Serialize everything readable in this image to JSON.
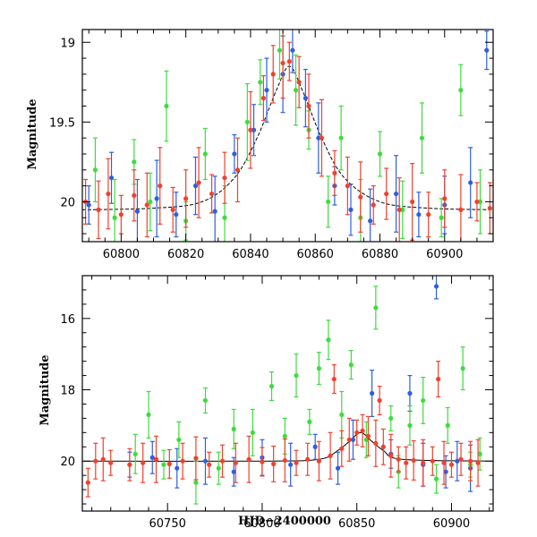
{
  "chart_data": [
    {
      "type": "scatter",
      "xlabel": "",
      "ylabel": "Magnitude",
      "xlim": [
        60788,
        60915
      ],
      "ylim": [
        20.25,
        18.92
      ],
      "y_inverted": true,
      "x_ticks": [
        60800,
        60820,
        60840,
        60860,
        60880,
        60900
      ],
      "y_ticks": [
        19,
        19.5,
        20
      ],
      "x_tick_labels": [
        "60800",
        "60820",
        "60840",
        "60860",
        "60880",
        "60900"
      ],
      "y_tick_labels": [
        "19",
        "19.5",
        "20"
      ],
      "model_curve": {
        "color": "#000000",
        "baseline": 20.05,
        "peak_time": 60852,
        "peak_mag": 19.15,
        "tE": 9,
        "points": [
          [
            60788,
            20.05
          ],
          [
            60810,
            20.04
          ],
          [
            60825,
            20.0
          ],
          [
            60835,
            19.85
          ],
          [
            60842,
            19.6
          ],
          [
            60848,
            19.3
          ],
          [
            60852,
            19.15
          ],
          [
            60856,
            19.3
          ],
          [
            60862,
            19.6
          ],
          [
            60869,
            19.85
          ],
          [
            60880,
            20.0
          ],
          [
            60895,
            20.04
          ],
          [
            60915,
            20.05
          ]
        ]
      },
      "series": [
        {
          "color": "#2d5fe0",
          "points": [
            [
              60790,
              20.02
            ],
            [
              60797,
              19.85
            ],
            [
              60805,
              20.06
            ],
            [
              60811,
              19.98
            ],
            [
              60817,
              20.08
            ],
            [
              60823,
              19.9
            ],
            [
              60829,
              20.06
            ],
            [
              60835,
              19.7
            ],
            [
              60841,
              19.55
            ],
            [
              60845,
              19.3
            ],
            [
              60850,
              19.2
            ],
            [
              60853,
              19.05
            ],
            [
              60857,
              19.35
            ],
            [
              60861,
              19.6
            ],
            [
              60866,
              19.9
            ],
            [
              60871,
              20.05
            ],
            [
              60877,
              20.12
            ],
            [
              60885,
              19.95
            ],
            [
              60892,
              20.08
            ],
            [
              60900,
              20.02
            ],
            [
              60908,
              19.88
            ],
            [
              60913,
              19.05
            ]
          ]
        },
        {
          "color": "#3ddc3d",
          "points": [
            [
              60792,
              19.8
            ],
            [
              60798,
              20.1
            ],
            [
              60804,
              19.75
            ],
            [
              60809,
              20.0
            ],
            [
              60814,
              19.4
            ],
            [
              60820,
              20.12
            ],
            [
              60826,
              19.7
            ],
            [
              60832,
              20.1
            ],
            [
              60839,
              19.5
            ],
            [
              60843,
              19.25
            ],
            [
              60849,
              19.05
            ],
            [
              60854,
              19.3
            ],
            [
              60858,
              19.55
            ],
            [
              60864,
              20.0
            ],
            [
              60868,
              19.6
            ],
            [
              60874,
              20.1
            ],
            [
              60880,
              19.7
            ],
            [
              60887,
              20.05
            ],
            [
              60893,
              19.6
            ],
            [
              60899,
              20.1
            ],
            [
              60905,
              19.3
            ],
            [
              60911,
              20.0
            ]
          ]
        },
        {
          "color": "#f0412d",
          "points": [
            [
              60789,
              20.0
            ],
            [
              60793,
              20.05
            ],
            [
              60796,
              19.95
            ],
            [
              60800,
              20.08
            ],
            [
              60804,
              19.96
            ],
            [
              60808,
              20.02
            ],
            [
              60812,
              19.9
            ],
            [
              60816,
              20.05
            ],
            [
              60820,
              19.98
            ],
            [
              60824,
              19.88
            ],
            [
              60828,
              19.95
            ],
            [
              60832,
              19.85
            ],
            [
              60836,
              19.8
            ],
            [
              60840,
              19.55
            ],
            [
              60844,
              19.35
            ],
            [
              60847,
              19.2
            ],
            [
              60850,
              19.13
            ],
            [
              60852,
              19.12
            ],
            [
              60855,
              19.25
            ],
            [
              60858,
              19.4
            ],
            [
              60862,
              19.6
            ],
            [
              60866,
              19.82
            ],
            [
              60870,
              19.9
            ],
            [
              60874,
              19.97
            ],
            [
              60878,
              20.02
            ],
            [
              60882,
              19.95
            ],
            [
              60886,
              20.05
            ],
            [
              60890,
              20.0
            ],
            [
              60895,
              20.08
            ],
            [
              60900,
              19.98
            ],
            [
              60905,
              20.05
            ],
            [
              60910,
              20.0
            ],
            [
              60914,
              20.04
            ]
          ]
        }
      ]
    },
    {
      "type": "scatter",
      "xlabel": "HJD−2400000",
      "ylabel": "Magnitude",
      "xlim": [
        60705,
        60922
      ],
      "ylim": [
        21.4,
        14.8
      ],
      "y_inverted": true,
      "x_ticks": [
        60750,
        60800,
        60850,
        60900
      ],
      "y_ticks": [
        16,
        18,
        20
      ],
      "x_tick_labels": [
        "60750",
        "60800",
        "60850",
        "60900"
      ],
      "y_tick_labels": [
        "16",
        "18",
        "20"
      ],
      "model_curve": {
        "color": "#000000",
        "points": [
          [
            60705,
            20.0
          ],
          [
            60800,
            20.0
          ],
          [
            60830,
            19.95
          ],
          [
            60840,
            19.7
          ],
          [
            60846,
            19.45
          ],
          [
            60852,
            19.2
          ],
          [
            60858,
            19.45
          ],
          [
            60864,
            19.7
          ],
          [
            60874,
            19.95
          ],
          [
            60922,
            20.0
          ]
        ]
      },
      "series": [
        {
          "color": "#2d5fe0",
          "points": [
            [
              60730,
              20.1
            ],
            [
              60742,
              19.9
            ],
            [
              60755,
              20.2
            ],
            [
              60770,
              20.0
            ],
            [
              60785,
              20.3
            ],
            [
              60800,
              19.9
            ],
            [
              60815,
              20.1
            ],
            [
              60828,
              19.6
            ],
            [
              60840,
              20.2
            ],
            [
              60848,
              19.4
            ],
            [
              60858,
              18.1
            ],
            [
              60868,
              19.8
            ],
            [
              60878,
              18.1
            ],
            [
              60885,
              20.1
            ],
            [
              60892,
              15.1
            ],
            [
              60897,
              20.3
            ],
            [
              60903,
              20.0
            ],
            [
              60910,
              20.2
            ]
          ]
        },
        {
          "color": "#3ddc3d",
          "points": [
            [
              60733,
              19.8
            ],
            [
              60740,
              18.7
            ],
            [
              60748,
              20.1
            ],
            [
              60756,
              19.4
            ],
            [
              60765,
              20.6
            ],
            [
              60770,
              18.3
            ],
            [
              60777,
              20.2
            ],
            [
              60785,
              19.1
            ],
            [
              60795,
              19.2
            ],
            [
              60805,
              17.9
            ],
            [
              60812,
              19.3
            ],
            [
              60818,
              17.6
            ],
            [
              60825,
              18.9
            ],
            [
              60830,
              17.4
            ],
            [
              60835,
              16.6
            ],
            [
              60842,
              18.7
            ],
            [
              60847,
              17.3
            ],
            [
              60855,
              19.4
            ],
            [
              60860,
              15.7
            ],
            [
              60868,
              18.8
            ],
            [
              60872,
              20.3
            ],
            [
              60878,
              19.0
            ],
            [
              60885,
              18.3
            ],
            [
              60892,
              20.5
            ],
            [
              60898,
              19.0
            ],
            [
              60906,
              17.4
            ],
            [
              60910,
              20.1
            ],
            [
              60915,
              19.8
            ]
          ]
        },
        {
          "color": "#f0412d",
          "points": [
            [
              60708,
              20.6
            ],
            [
              60712,
              20.0
            ],
            [
              60716,
              19.95
            ],
            [
              60720,
              20.05
            ],
            [
              60730,
              20.1
            ],
            [
              60737,
              20.05
            ],
            [
              60744,
              19.95
            ],
            [
              60751,
              20.08
            ],
            [
              60758,
              20.0
            ],
            [
              60765,
              19.92
            ],
            [
              60772,
              20.1
            ],
            [
              60779,
              20.0
            ],
            [
              60786,
              20.05
            ],
            [
              60793,
              19.95
            ],
            [
              60800,
              20.02
            ],
            [
              60806,
              20.08
            ],
            [
              60812,
              19.98
            ],
            [
              60818,
              20.05
            ],
            [
              60824,
              19.95
            ],
            [
              60830,
              20.0
            ],
            [
              60836,
              19.85
            ],
            [
              60838,
              17.7
            ],
            [
              60842,
              19.65
            ],
            [
              60846,
              19.4
            ],
            [
              60850,
              19.2
            ],
            [
              60853,
              19.15
            ],
            [
              60856,
              19.3
            ],
            [
              60860,
              19.5
            ],
            [
              60862,
              18.3
            ],
            [
              60864,
              19.6
            ],
            [
              60868,
              19.85
            ],
            [
              60872,
              19.95
            ],
            [
              60876,
              20.05
            ],
            [
              60880,
              19.98
            ],
            [
              60885,
              20.05
            ],
            [
              60890,
              20.0
            ],
            [
              60893,
              17.7
            ],
            [
              60896,
              20.05
            ],
            [
              60900,
              20.1
            ],
            [
              60905,
              19.95
            ],
            [
              60910,
              20.0
            ],
            [
              60914,
              20.05
            ]
          ]
        }
      ]
    }
  ]
}
